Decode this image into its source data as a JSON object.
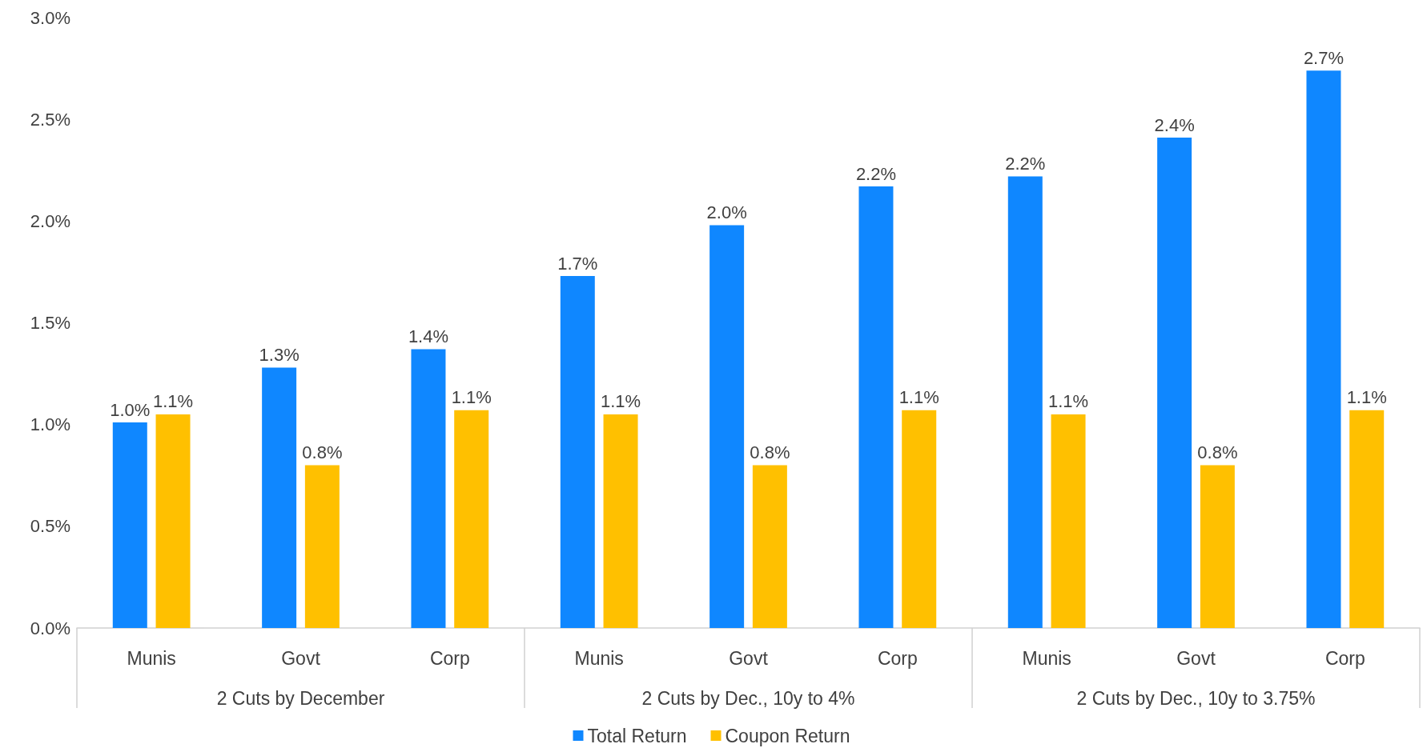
{
  "chart_data": {
    "type": "bar",
    "categories": [
      "Munis",
      "Govt",
      "Corp",
      "Munis",
      "Govt",
      "Corp",
      "Munis",
      "Govt",
      "Corp"
    ],
    "annotations": [
      "2 Cuts by December",
      "2 Cuts by Dec., 10y to 4%",
      "2 Cuts by Dec., 10y to 3.75%"
    ],
    "series": [
      {
        "name": "Total Return",
        "color": "#0f87ff",
        "values": [
          1.01,
          1.28,
          1.37,
          1.73,
          1.98,
          2.17,
          2.22,
          2.41,
          2.74
        ],
        "value_labels": [
          "1.0%",
          "1.3%",
          "1.4%",
          "1.7%",
          "2.0%",
          "2.2%",
          "2.2%",
          "2.4%",
          "2.7%"
        ]
      },
      {
        "name": "Coupon Return",
        "color": "#ffc000",
        "values": [
          1.05,
          0.8,
          1.07,
          1.05,
          0.8,
          1.07,
          1.05,
          0.8,
          1.07
        ],
        "value_labels": [
          "1.1%",
          "0.8%",
          "1.1%",
          "1.1%",
          "0.8%",
          "1.1%",
          "1.1%",
          "0.8%",
          "1.1%"
        ]
      }
    ],
    "ylim": [
      0,
      3
    ],
    "yticks": [
      {
        "value": 0,
        "label": "0.0%"
      },
      {
        "value": 0.5,
        "label": "0.5%"
      },
      {
        "value": 1,
        "label": "1.0%"
      },
      {
        "value": 1.5,
        "label": "1.5%"
      },
      {
        "value": 2,
        "label": "2.0%"
      },
      {
        "value": 2.5,
        "label": "2.5%"
      },
      {
        "value": 3,
        "label": "3.0%"
      }
    ],
    "grid": false,
    "legend": "bottom"
  }
}
